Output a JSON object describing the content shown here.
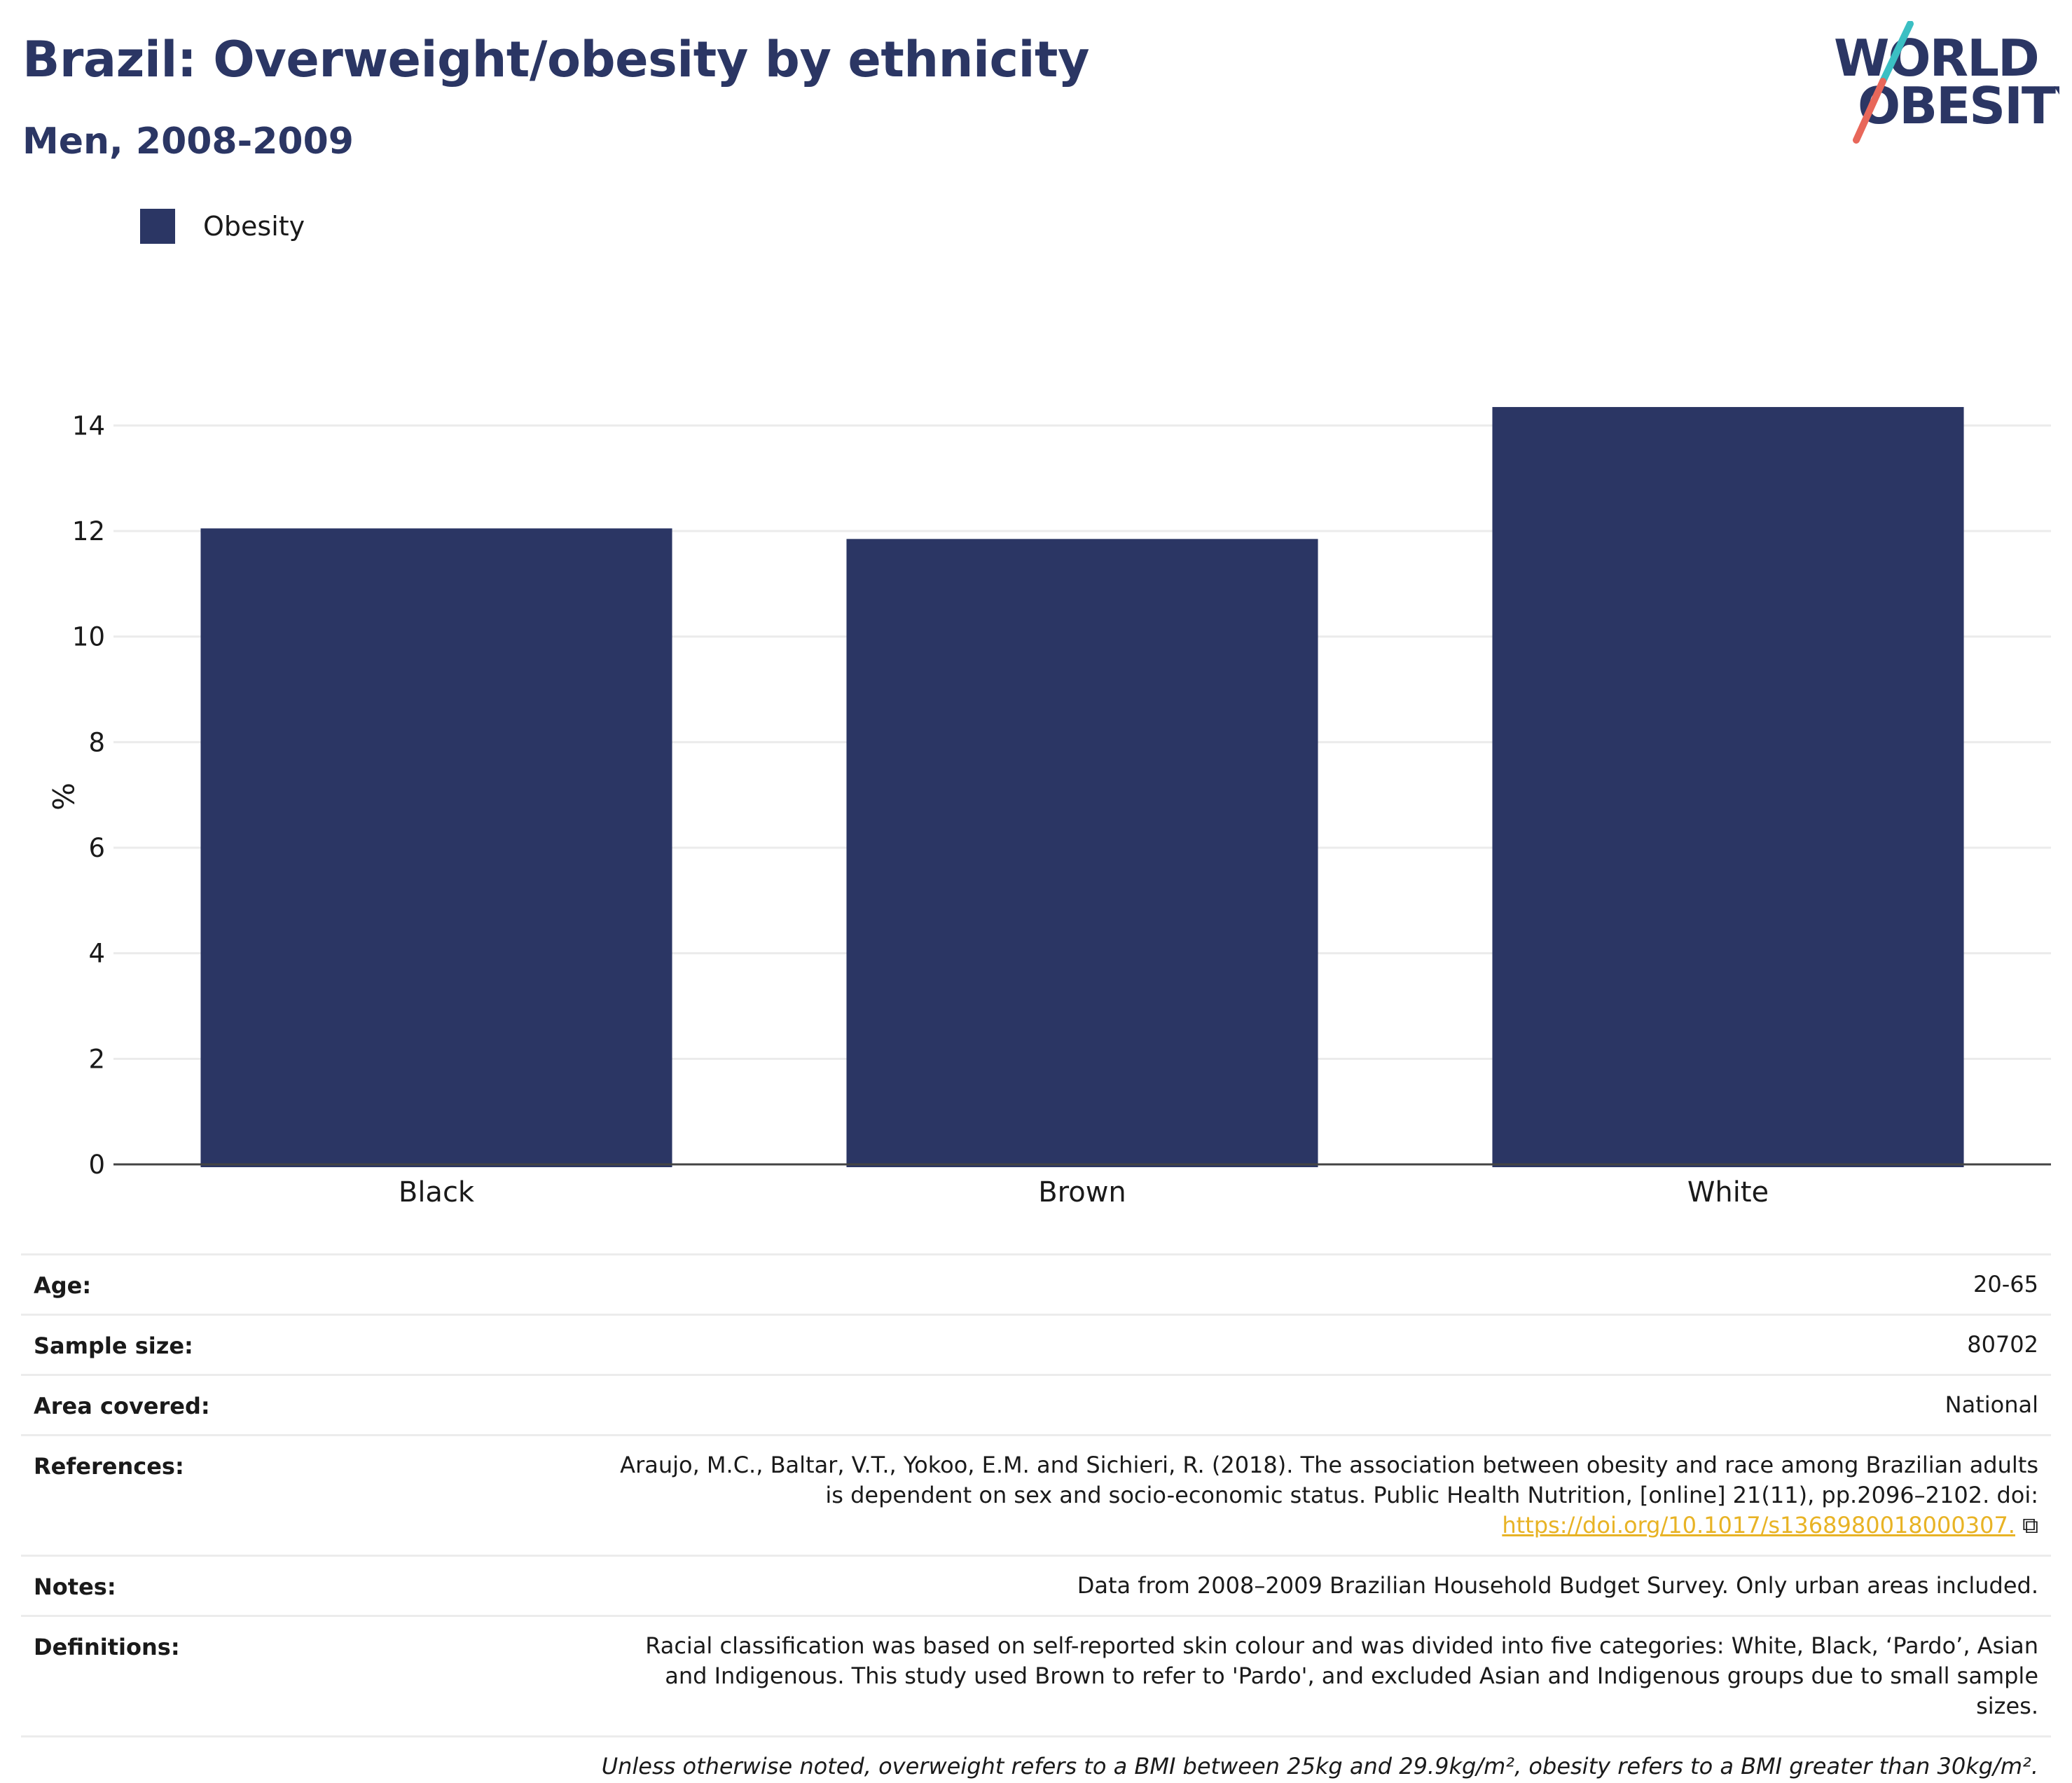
{
  "header": {
    "title": "Brazil: Overweight/obesity by ethnicity",
    "subtitle": "Men, 2008-2009"
  },
  "logo": {
    "line1": "WORLD",
    "line2": "OBESITY",
    "colors": {
      "text": "#2b3664",
      "slash_top": "#3bbfc3",
      "slash_bottom": "#e8675a"
    }
  },
  "chart_data": {
    "type": "bar",
    "categories": [
      "Black",
      "Brown",
      "White"
    ],
    "series": [
      {
        "name": "Obesity",
        "values": [
          12.05,
          11.85,
          14.35
        ],
        "color": "#2b3664"
      }
    ],
    "title": "Brazil: Overweight/obesity by ethnicity",
    "subtitle": "Men, 2008-2009",
    "xlabel": "",
    "ylabel": "%",
    "ylim": [
      0,
      15
    ],
    "yticks": [
      0,
      2,
      4,
      6,
      8,
      10,
      12,
      14
    ],
    "grid": true,
    "legend": "top-left"
  },
  "info": {
    "age": {
      "label": "Age:",
      "value": "20-65"
    },
    "sample_size": {
      "label": "Sample size:",
      "value": "80702"
    },
    "area_covered": {
      "label": "Area covered:",
      "value": "National"
    },
    "references": {
      "label": "References:",
      "text": "Araujo, M.C., Baltar, V.T., Yokoo, E.M. and Sichieri, R. (2018). The association between obesity and race among Brazilian adults is dependent on sex and socio-economic status. Public Health Nutrition, [online] 21(11), pp.2096–2102. doi: ",
      "link": "https://doi.org/10.1017/s1368980018000307.",
      "icon": "external-link-icon"
    },
    "notes": {
      "label": "Notes:",
      "value": "Data from 2008–2009 Brazilian Household Budget Survey. Only urban areas included."
    },
    "definitions": {
      "label": "Definitions:",
      "value": "Racial classification was based on self-reported skin colour and was divided into five categories: White, Black, ‘Pardo’, Asian and Indigenous. This study used Brown to refer to 'Pardo', and excluded Asian and Indigenous groups due to small sample sizes."
    },
    "footnote": "Unless otherwise noted, overweight refers to a BMI between 25kg and 29.9kg/m², obesity refers to a BMI greater than 30kg/m²."
  }
}
